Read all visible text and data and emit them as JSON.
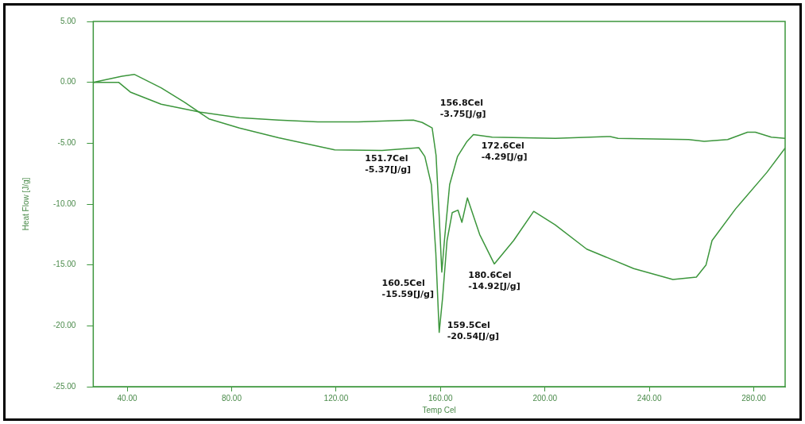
{
  "chart_data": {
    "type": "line",
    "xlabel": "Temp Cel",
    "ylabel": "Heat Flow [J/g]",
    "xlim": [
      27,
      292
    ],
    "xticks": [
      {
        "value": 40,
        "label": "40.00"
      },
      {
        "value": 80,
        "label": "80.00"
      },
      {
        "value": 120,
        "label": "120.00"
      },
      {
        "value": 160,
        "label": "160.00"
      },
      {
        "value": 200,
        "label": "200.00"
      },
      {
        "value": 240,
        "label": "240.00"
      },
      {
        "value": 280,
        "label": "280.00"
      }
    ],
    "ylim": [
      -25,
      5
    ],
    "yticks": [
      {
        "value": 5,
        "label": "5.00"
      },
      {
        "value": 0,
        "label": "0.00"
      },
      {
        "value": -5,
        "label": "-5.00"
      },
      {
        "value": -10,
        "label": "-10.00"
      },
      {
        "value": -15,
        "label": "-15.00"
      },
      {
        "value": -20,
        "label": "-20.00"
      },
      {
        "value": -25,
        "label": "-25.00"
      }
    ],
    "grid": false,
    "legend": false,
    "marker": "none",
    "line_style": "solid",
    "series": [
      {
        "color": "#3c963c",
        "x": [
          27,
          36.7,
          41.2,
          53,
          68,
          83,
          98,
          113,
          128.5,
          149.6,
          153,
          156.8,
          158.3,
          159.5,
          160.5,
          161.5,
          163.5,
          166.5,
          170,
          172.6,
          179.8,
          204,
          225,
          228,
          255,
          261,
          270,
          277.6,
          280.6,
          286.7,
          292
        ],
        "values": [
          0,
          0,
          -0.8,
          -1.8,
          -2.45,
          -2.9,
          -3.1,
          -3.25,
          -3.25,
          -3.1,
          -3.3,
          -3.75,
          -6,
          -11,
          -15.59,
          -13,
          -8.4,
          -6.1,
          -4.9,
          -4.29,
          -4.5,
          -4.6,
          -4.45,
          -4.6,
          -4.7,
          -4.85,
          -4.7,
          -4.1,
          -4.1,
          -4.5,
          -4.6
        ]
      },
      {
        "color": "#3c963c",
        "x": [
          27,
          38,
          42.7,
          53,
          62,
          71.3,
          83,
          98,
          119.5,
          137.6,
          151.7,
          154,
          156.5,
          158.2,
          159.5,
          160.8,
          162.5,
          164.5,
          166.7,
          168.2,
          170.3,
          175,
          180.6,
          188,
          195.7,
          203.9,
          216,
          234,
          249,
          258,
          261.7,
          264,
          273,
          285,
          292
        ],
        "values": [
          0,
          0.5,
          0.65,
          -0.45,
          -1.65,
          -3,
          -3.75,
          -4.55,
          -5.55,
          -5.6,
          -5.37,
          -6.1,
          -8.4,
          -14,
          -20.54,
          -17.7,
          -13,
          -10.7,
          -10.5,
          -11.5,
          -9.5,
          -12.5,
          -14.92,
          -13,
          -10.6,
          -11.7,
          -13.7,
          -15.3,
          -16.2,
          -16,
          -15,
          -13,
          -10.4,
          -7.4,
          -5.4
        ]
      }
    ],
    "annotations": [
      {
        "text": "156.8Cel\n-3.75[J/g]",
        "x": 156.8,
        "y": -3.75
      },
      {
        "text": "172.6Cel\n-4.29[J/g]",
        "x": 172.6,
        "y": -4.29
      },
      {
        "text": "151.7Cel\n-5.37[J/g]",
        "x": 151.7,
        "y": -5.37
      },
      {
        "text": "180.6Cel\n-14.92[J/g]",
        "x": 180.6,
        "y": -14.92
      },
      {
        "text": "160.5Cel\n-15.59[J/g]",
        "x": 160.5,
        "y": -15.59
      },
      {
        "text": "159.5Cel\n-20.54[J/g]",
        "x": 159.5,
        "y": -20.54
      }
    ]
  }
}
